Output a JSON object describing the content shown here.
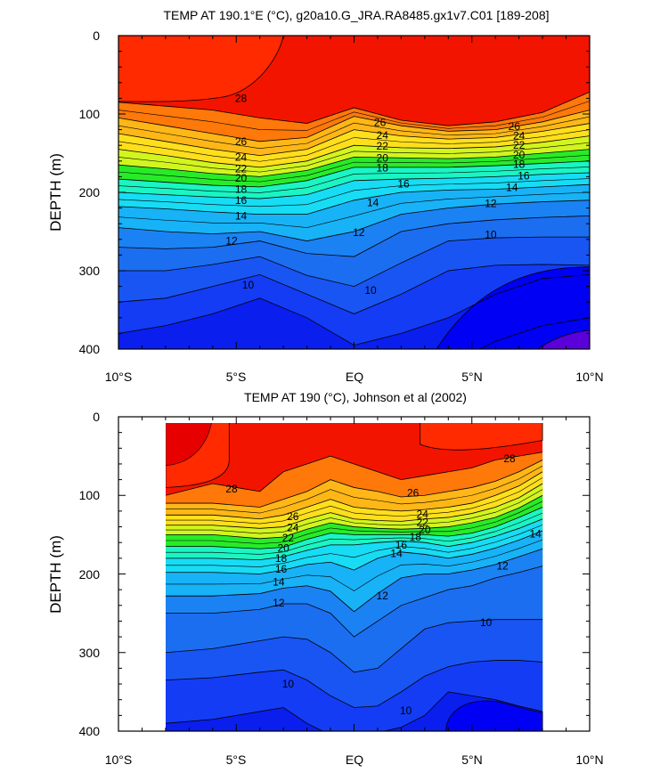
{
  "colors": {
    "c10": "#0000f5",
    "c12": "#1a78f5",
    "c14": "#17b6f8",
    "c16": "#19e6ef",
    "c18": "#19ff93",
    "c20": "#31ea1d",
    "c22": "#c6f41f",
    "c24": "#fff31c",
    "c26": "#ffc619",
    "c28": "#ff9a10",
    "c30": "#ff6a00",
    "c32": "#ff2a00",
    "c34": "#e60000",
    "contour": "#000000",
    "frame": "#000000"
  },
  "chart_data": [
    {
      "type": "contour",
      "title": "TEMP AT 190.1°E (°C), g20a10.G_JRA.RA8485.gx1v7.C01 [189-208]",
      "xlabel": "",
      "ylabel": "DEPTH (m)",
      "x_ticks": [
        "10°S",
        "5°S",
        "EQ",
        "5°N",
        "10°N"
      ],
      "y_ticks": [
        "0",
        "100",
        "200",
        "300",
        "400"
      ],
      "xlim": [
        -10,
        10
      ],
      "ylim": [
        400,
        0
      ],
      "contour_interval": 1,
      "labels": [
        {
          "text": "28",
          "x": -4.8,
          "y": 80
        },
        {
          "text": "26",
          "x": -4.8,
          "y": 135
        },
        {
          "text": "24",
          "x": -4.8,
          "y": 155
        },
        {
          "text": "22",
          "x": -4.8,
          "y": 170
        },
        {
          "text": "20",
          "x": -4.8,
          "y": 182
        },
        {
          "text": "18",
          "x": -4.8,
          "y": 196
        },
        {
          "text": "16",
          "x": -4.8,
          "y": 210
        },
        {
          "text": "14",
          "x": -4.8,
          "y": 230
        },
        {
          "text": "12",
          "x": -5.2,
          "y": 262
        },
        {
          "text": "10",
          "x": -4.5,
          "y": 318
        },
        {
          "text": "26",
          "x": 1.1,
          "y": 111
        },
        {
          "text": "24",
          "x": 1.2,
          "y": 127
        },
        {
          "text": "22",
          "x": 1.2,
          "y": 141
        },
        {
          "text": "20",
          "x": 1.2,
          "y": 156
        },
        {
          "text": "18",
          "x": 1.2,
          "y": 169
        },
        {
          "text": "16",
          "x": 2.1,
          "y": 189
        },
        {
          "text": "14",
          "x": 0.8,
          "y": 213
        },
        {
          "text": "12",
          "x": 0.2,
          "y": 251
        },
        {
          "text": "10",
          "x": 0.7,
          "y": 325
        },
        {
          "text": "26",
          "x": 6.8,
          "y": 116
        },
        {
          "text": "24",
          "x": 7.0,
          "y": 128
        },
        {
          "text": "22",
          "x": 7.0,
          "y": 140
        },
        {
          "text": "20",
          "x": 7.0,
          "y": 152
        },
        {
          "text": "18",
          "x": 7.0,
          "y": 164
        },
        {
          "text": "16",
          "x": 7.2,
          "y": 179
        },
        {
          "text": "14",
          "x": 6.7,
          "y": 194
        },
        {
          "text": "12",
          "x": 5.8,
          "y": 214
        },
        {
          "text": "10",
          "x": 5.8,
          "y": 254
        }
      ]
    },
    {
      "type": "contour",
      "title": "TEMP AT 190 (°C), Johnson et al (2002)",
      "xlabel": "",
      "ylabel": "DEPTH (m)",
      "x_ticks": [
        "10°S",
        "5°S",
        "EQ",
        "5°N",
        "10°N"
      ],
      "y_ticks": [
        "0",
        "100",
        "200",
        "300",
        "400"
      ],
      "xlim": [
        -10,
        10
      ],
      "ylim": [
        400,
        0
      ],
      "data_xlim": [
        -8,
        8
      ],
      "contour_interval": 1,
      "labels": [
        {
          "text": "28",
          "x": 6.6,
          "y": 53
        },
        {
          "text": "28",
          "x": -5.2,
          "y": 92
        },
        {
          "text": "26",
          "x": 2.5,
          "y": 97
        },
        {
          "text": "26",
          "x": -2.6,
          "y": 127
        },
        {
          "text": "24",
          "x": -2.6,
          "y": 141
        },
        {
          "text": "22",
          "x": -2.8,
          "y": 154
        },
        {
          "text": "20",
          "x": -3.0,
          "y": 167
        },
        {
          "text": "18",
          "x": -3.1,
          "y": 180
        },
        {
          "text": "16",
          "x": -3.1,
          "y": 194
        },
        {
          "text": "14",
          "x": -3.2,
          "y": 210
        },
        {
          "text": "12",
          "x": -3.2,
          "y": 237
        },
        {
          "text": "10",
          "x": -2.8,
          "y": 340
        },
        {
          "text": "24",
          "x": 2.9,
          "y": 124
        },
        {
          "text": "22",
          "x": 2.9,
          "y": 134
        },
        {
          "text": "20",
          "x": 3.0,
          "y": 144
        },
        {
          "text": "18",
          "x": 2.6,
          "y": 153
        },
        {
          "text": "16",
          "x": 2.0,
          "y": 163
        },
        {
          "text": "14",
          "x": 1.8,
          "y": 174
        },
        {
          "text": "12",
          "x": 1.2,
          "y": 228
        },
        {
          "text": "10",
          "x": 2.2,
          "y": 374
        },
        {
          "text": "14",
          "x": 7.7,
          "y": 149
        },
        {
          "text": "12",
          "x": 6.3,
          "y": 190
        },
        {
          "text": "10",
          "x": 5.6,
          "y": 262
        }
      ]
    }
  ]
}
